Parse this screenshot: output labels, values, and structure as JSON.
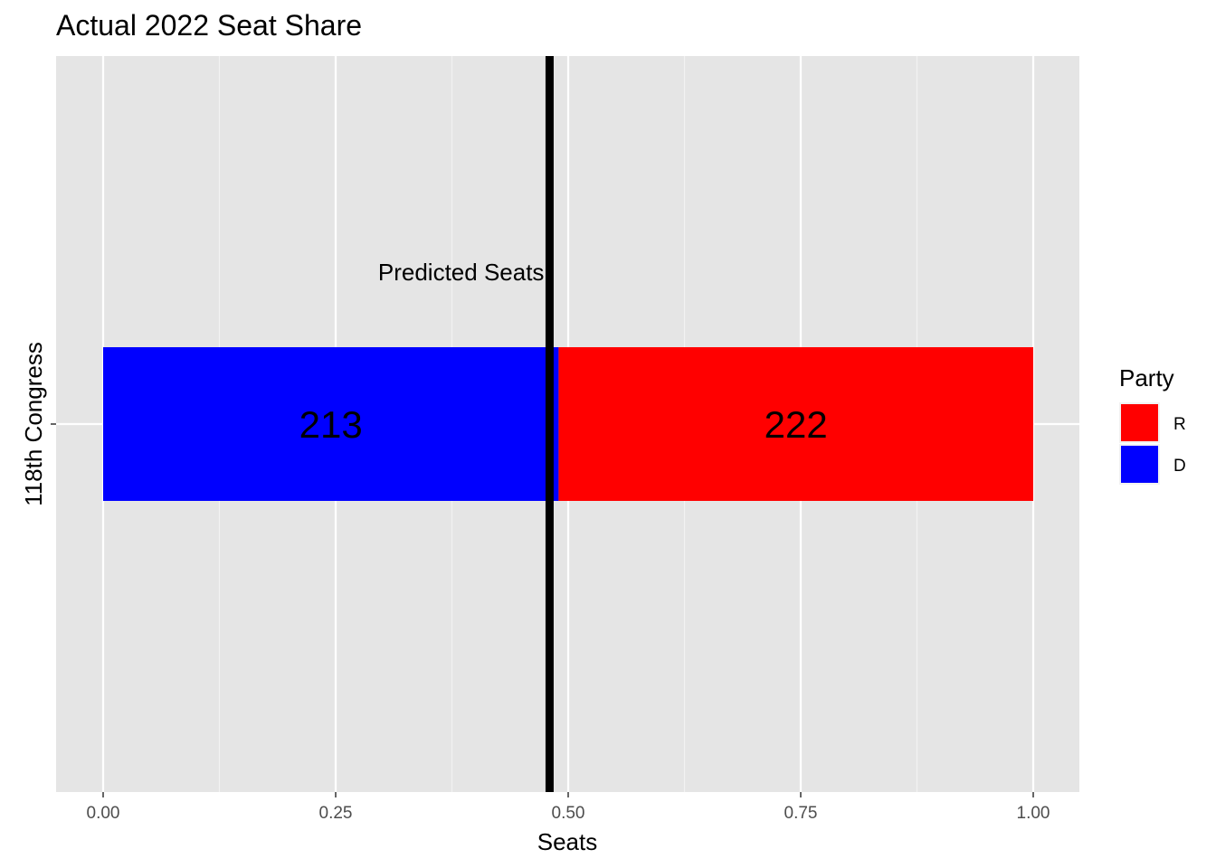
{
  "chart_data": {
    "type": "bar",
    "orientation": "horizontal",
    "stacked": true,
    "title": "Actual 2022 Seat Share",
    "xlabel": "Seats",
    "ylabel": "118th Congress",
    "xlim": [
      0,
      1
    ],
    "x_ticks": [
      "0.00",
      "0.25",
      "0.50",
      "0.75",
      "1.00"
    ],
    "x_tick_values": [
      0,
      0.25,
      0.5,
      0.75,
      1
    ],
    "categories": [
      ""
    ],
    "series": [
      {
        "name": "D",
        "values": [
          0.4897
        ],
        "label": "213",
        "color": "#0000ff"
      },
      {
        "name": "R",
        "values": [
          0.5103
        ],
        "label": "222",
        "color": "#ff0000"
      }
    ],
    "reference_line": {
      "x": 0.48,
      "label": "Predicted Seats",
      "color": "#000000"
    },
    "legend": {
      "title": "Party",
      "position": "right",
      "entries": [
        {
          "label": "R",
          "color": "#ff0000"
        },
        {
          "label": "D",
          "color": "#0000ff"
        }
      ]
    },
    "grid": true,
    "panel_background": "#e5e5e5"
  }
}
